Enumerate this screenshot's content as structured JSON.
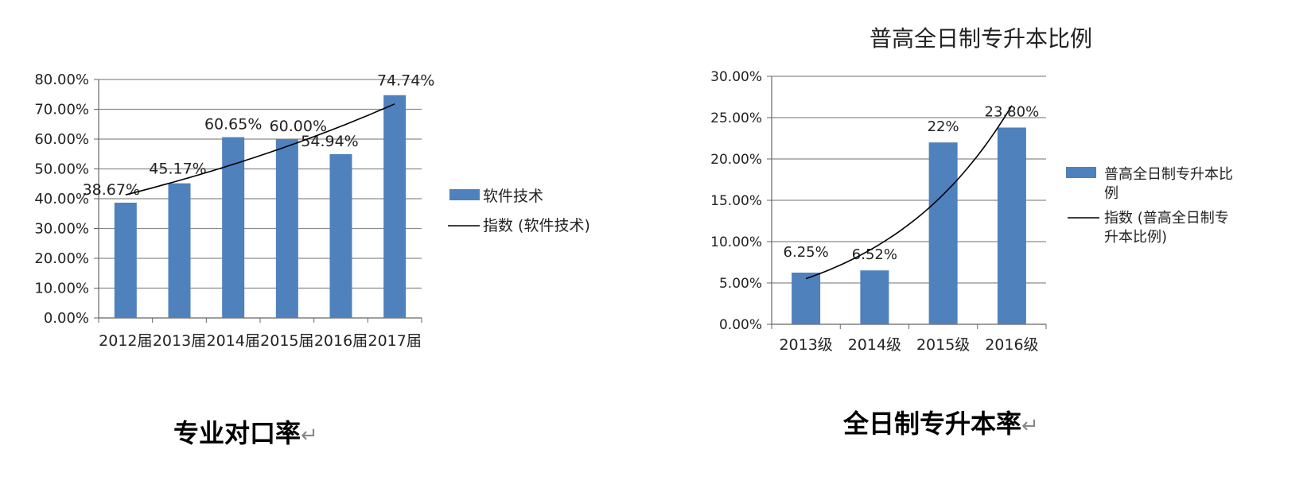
{
  "chart_data": [
    {
      "type": "bar",
      "title": "",
      "categories": [
        "2012届",
        "2013届",
        "2014届",
        "2015届",
        "2016届",
        "2017届"
      ],
      "series": [
        {
          "name": "软件技术",
          "values": [
            38.67,
            45.17,
            60.65,
            60.0,
            54.94,
            74.74
          ],
          "color": "#4f81bd"
        }
      ],
      "data_labels": [
        "38.67%",
        "45.17%",
        "60.65%",
        "60.00%",
        "54.94%",
        "74.74%"
      ],
      "trendline": {
        "name": "指数 (软件技术)",
        "type": "exponential",
        "color": "#000000"
      },
      "y_ticks": [
        "0.00%",
        "10.00%",
        "20.00%",
        "30.00%",
        "40.00%",
        "50.00%",
        "60.00%",
        "70.00%",
        "80.00%"
      ],
      "ylim": [
        0,
        80
      ],
      "grid": true,
      "legend": "right"
    },
    {
      "type": "bar",
      "title": "普高全日制专升本比例",
      "categories": [
        "2013级",
        "2014级",
        "2015级",
        "2016级"
      ],
      "series": [
        {
          "name": "普高全日制专升本比例",
          "values": [
            6.25,
            6.52,
            22.0,
            23.8
          ],
          "color": "#4f81bd"
        }
      ],
      "data_labels": [
        "6.25%",
        "6.52%",
        "22%",
        "23.80%"
      ],
      "trendline": {
        "name": "指数 (普高全日制专升本比例)",
        "type": "exponential",
        "color": "#000000"
      },
      "y_ticks": [
        "0.00%",
        "5.00%",
        "10.00%",
        "15.00%",
        "20.00%",
        "25.00%",
        "30.00%"
      ],
      "ylim": [
        0,
        30
      ],
      "grid": true,
      "legend": "right"
    }
  ],
  "captions": {
    "left": "专业对口率",
    "right": "全日制专升本率",
    "return_mark": "↵"
  }
}
